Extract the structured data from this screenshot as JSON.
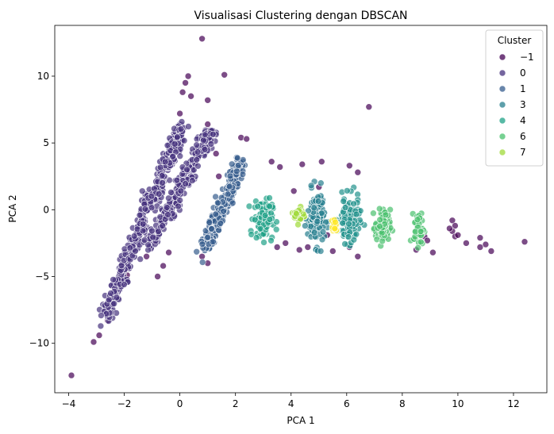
{
  "chart_data": {
    "type": "scatter",
    "title": "Visualisasi Clustering dengan DBSCAN",
    "xlabel": "PCA 1",
    "ylabel": "PCA 2",
    "xlim": [
      -4.5,
      13.2
    ],
    "ylim": [
      -13.7,
      13.8
    ],
    "xticks": [
      -4,
      -2,
      0,
      2,
      4,
      6,
      8,
      10,
      12
    ],
    "xtick_labels": [
      "−4",
      "−2",
      "0",
      "2",
      "4",
      "6",
      "8",
      "10",
      "12"
    ],
    "yticks": [
      -10,
      -5,
      0,
      5,
      10
    ],
    "ytick_labels": [
      "−10",
      "−5",
      "0",
      "5",
      "10"
    ],
    "grid": false,
    "legend": {
      "title": "Cluster",
      "placement": "top-right",
      "entries": [
        {
          "label": "−1",
          "color": "#440154"
        },
        {
          "label": "0",
          "color": "#46327e"
        },
        {
          "label": "1",
          "color": "#365c8d"
        },
        {
          "label": "3",
          "color": "#277f8e"
        },
        {
          "label": "4",
          "color": "#1fa187"
        },
        {
          "label": "6",
          "color": "#4ac16d"
        },
        {
          "label": "7",
          "color": "#a0da39"
        }
      ]
    },
    "colors": {
      "-1": "#440154",
      "0": "#46327e",
      "1": "#365c8d",
      "2": "#2c728e",
      "3": "#277f8e",
      "4": "#1fa187",
      "5": "#21918c",
      "6": "#4ac16d",
      "7": "#a0da39",
      "8": "#fde725"
    },
    "series": [
      {
        "cluster": "-1",
        "points": [
          [
            -3.9,
            -12.4
          ],
          [
            -3.1,
            -9.9
          ],
          [
            -2.9,
            -9.4
          ],
          [
            -2.6,
            -8.3
          ],
          [
            -1.9,
            -4.9
          ],
          [
            -1.2,
            -3.5
          ],
          [
            -0.9,
            -2.4
          ],
          [
            -0.8,
            -5.0
          ],
          [
            -0.6,
            -4.2
          ],
          [
            -0.4,
            -3.2
          ],
          [
            0.0,
            7.2
          ],
          [
            0.1,
            8.8
          ],
          [
            0.2,
            9.5
          ],
          [
            0.3,
            10.0
          ],
          [
            0.4,
            8.5
          ],
          [
            0.8,
            12.8
          ],
          [
            1.0,
            8.2
          ],
          [
            1.0,
            6.4
          ],
          [
            1.1,
            5.5
          ],
          [
            1.3,
            4.2
          ],
          [
            1.6,
            10.1
          ],
          [
            1.0,
            -4.0
          ],
          [
            0.8,
            -3.5
          ],
          [
            2.2,
            5.4
          ],
          [
            2.4,
            5.3
          ],
          [
            1.4,
            2.5
          ],
          [
            3.3,
            3.6
          ],
          [
            3.6,
            3.2
          ],
          [
            4.4,
            3.4
          ],
          [
            5.1,
            3.6
          ],
          [
            6.1,
            3.3
          ],
          [
            6.8,
            7.7
          ],
          [
            6.4,
            2.8
          ],
          [
            4.1,
            1.4
          ],
          [
            5.0,
            1.7
          ],
          [
            5.3,
            -1.9
          ],
          [
            6.4,
            -3.5
          ],
          [
            3.5,
            -2.8
          ],
          [
            3.8,
            -2.5
          ],
          [
            4.3,
            -3.0
          ],
          [
            4.6,
            -2.8
          ],
          [
            5.5,
            -3.1
          ],
          [
            6.1,
            -2.8
          ],
          [
            8.8,
            -2.0
          ],
          [
            8.9,
            -2.3
          ],
          [
            8.5,
            -3.0
          ],
          [
            9.1,
            -3.2
          ],
          [
            9.8,
            -0.8
          ],
          [
            9.9,
            -1.2
          ],
          [
            9.8,
            -1.6
          ],
          [
            9.9,
            -2.0
          ],
          [
            9.7,
            -1.4
          ],
          [
            10.0,
            -1.9
          ],
          [
            10.8,
            -2.1
          ],
          [
            11.0,
            -2.6
          ],
          [
            10.8,
            -2.8
          ],
          [
            11.2,
            -3.1
          ],
          [
            12.4,
            -2.4
          ],
          [
            10.3,
            -2.5
          ],
          [
            8.6,
            -1.8
          ]
        ]
      },
      {
        "cluster": "0",
        "band": {
          "x0": -2.7,
          "y0": -8.0,
          "x1": 0.1,
          "y1": 6.3,
          "width": 0.25,
          "count": 420
        }
      },
      {
        "cluster": "0",
        "band": {
          "x0": -1.1,
          "y0": -2.8,
          "x1": 1.1,
          "y1": 6.0,
          "width": 0.25,
          "count": 260
        }
      },
      {
        "cluster": "1",
        "band": {
          "x0": 0.9,
          "y0": -2.9,
          "x1": 2.2,
          "y1": 3.6,
          "width": 0.25,
          "count": 240
        }
      },
      {
        "cluster": "3",
        "blob": {
          "cx": 4.9,
          "cy": -0.6,
          "rx": 0.25,
          "ry": 2.0,
          "count": 130
        }
      },
      {
        "cluster": "5",
        "blob": {
          "cx": 6.1,
          "cy": -0.8,
          "rx": 0.3,
          "ry": 1.7,
          "count": 130
        }
      },
      {
        "cluster": "4",
        "blob": {
          "cx": 3.0,
          "cy": -0.7,
          "rx": 0.28,
          "ry": 1.5,
          "count": 120
        }
      },
      {
        "cluster": "6",
        "blob": {
          "cx": 7.3,
          "cy": -1.3,
          "rx": 0.22,
          "ry": 1.3,
          "count": 90
        }
      },
      {
        "cluster": "6",
        "blob": {
          "cx": 8.6,
          "cy": -1.4,
          "rx": 0.15,
          "ry": 1.2,
          "count": 40
        }
      },
      {
        "cluster": "7",
        "blob": {
          "cx": 4.3,
          "cy": -0.4,
          "rx": 0.16,
          "ry": 0.6,
          "count": 35
        }
      },
      {
        "cluster": "8",
        "blob": {
          "cx": 5.55,
          "cy": -1.2,
          "rx": 0.12,
          "ry": 0.7,
          "count": 16
        }
      }
    ]
  }
}
